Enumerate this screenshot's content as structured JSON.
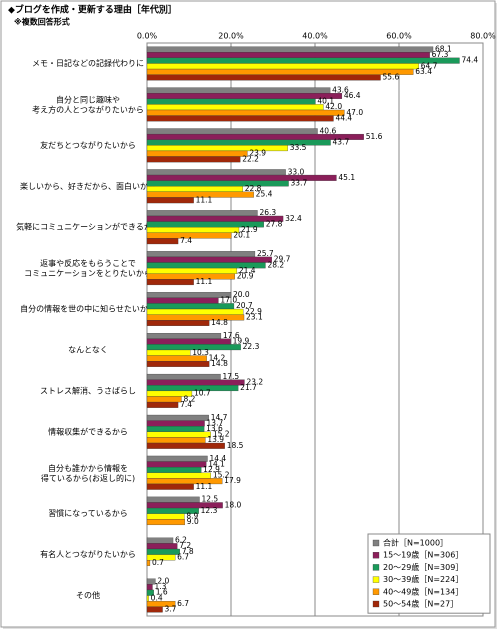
{
  "chart_data": {
    "type": "hbar",
    "title": "◆ブログを作成・更新する理由［年代別］",
    "subtitle": "※複数回答形式",
    "categories": [
      "メモ・日記などの記録代わりに",
      "自分と同じ趣味や\n考え方の人とつながりたいから",
      "友だちとつながりたいから",
      "楽しいから、好きだから、面白いから",
      "気軽にコミュニケーションができるから",
      "返事や反応をもらうことで\nコミュニケーションをとりたいから",
      "自分の情報を世の中に知らせたいから",
      "なんとなく",
      "ストレス解消、うさばらし",
      "情報収集ができるから",
      "自分も誰かから情報を\n得ているから(お返し的に)",
      "習慣になっているから",
      "有名人とつながりたいから",
      "その他"
    ],
    "series": [
      {
        "name": "合計［N=1000］",
        "color": "#808080",
        "values": [
          68.1,
          43.6,
          40.6,
          33.0,
          26.3,
          25.7,
          20.0,
          17.6,
          17.5,
          14.7,
          14.4,
          12.5,
          6.2,
          2.0
        ],
        "value_labels": [
          "68.1",
          "43.6",
          "40.6",
          "33.0",
          "26.3",
          "25.7",
          "20.0",
          "17.6",
          "17.5",
          "14.7",
          "14.4",
          "12.5",
          "6.2",
          "2.0"
        ]
      },
      {
        "name": "15～19歳［N=306］",
        "color": "#8b1f5a",
        "values": [
          67.3,
          46.4,
          51.6,
          45.1,
          32.4,
          29.7,
          17.0,
          19.9,
          23.2,
          13.7,
          14.1,
          18.0,
          7.2,
          1.3
        ],
        "value_labels": [
          "67.3",
          "46.4",
          "51.6",
          "45.1",
          "32.4",
          "29.7",
          "17.0",
          "19.9",
          "23.2",
          "13.7",
          "14.1",
          "18.0",
          "7.2",
          "1.3"
        ]
      },
      {
        "name": "20～29歳［N=309］",
        "color": "#1a9a5a",
        "values": [
          74.4,
          40.1,
          43.7,
          33.7,
          27.8,
          28.2,
          20.7,
          22.3,
          21.7,
          13.6,
          12.9,
          12.3,
          7.8,
          1.6
        ],
        "value_labels": [
          "74.4",
          "40.1",
          "43.7",
          "33.7",
          "27.8",
          "28.2",
          "20.7",
          "22.3",
          "21.7",
          "13.6",
          "12.9",
          "12.3",
          "7.8",
          "1.6"
        ]
      },
      {
        "name": "30～39歳［N=224］",
        "color": "#ffff00",
        "values": [
          64.7,
          42.0,
          33.5,
          22.8,
          21.9,
          21.4,
          22.9,
          10.3,
          10.7,
          15.2,
          15.2,
          8.9,
          6.7,
          0.4
        ],
        "value_labels": [
          "64.7",
          "42.0",
          "33.5",
          "22.8",
          "21.9",
          "21.4",
          "22.9",
          "10.3",
          "10.7",
          "15.2",
          "15.2",
          "8.9",
          "6.7",
          "0.4"
        ]
      },
      {
        "name": "40～49歳［N=134］",
        "color": "#ff9900",
        "values": [
          63.4,
          47.0,
          23.9,
          25.4,
          20.1,
          20.9,
          23.1,
          14.2,
          8.2,
          13.9,
          17.9,
          9.0,
          0.7,
          6.7
        ],
        "value_labels": [
          "63.4",
          "47.0",
          "23.9",
          "25.4",
          "20.1",
          "20.9",
          "23.1",
          "14.2",
          "8.2",
          "13.9",
          "17.9",
          "9.0",
          "0.7",
          "6.7"
        ]
      },
      {
        "name": "50～54歳［N=27］",
        "color": "#a0280a",
        "values": [
          55.6,
          44.4,
          22.2,
          11.1,
          7.4,
          11.1,
          14.8,
          14.8,
          7.4,
          18.5,
          11.1,
          null,
          null,
          3.7
        ],
        "value_labels": [
          "55.6",
          "44.4",
          "22.2",
          "11.1",
          "7.4",
          "11.1",
          "14.8",
          "14.8",
          "7.4",
          "18.5",
          "11.1",
          null,
          null,
          "3.7"
        ]
      }
    ],
    "xlim": [
      0,
      80
    ],
    "xticks": [
      {
        "value": 0,
        "label": "0.0%"
      },
      {
        "value": 20,
        "label": "20.0%"
      },
      {
        "value": 40,
        "label": "40.0%"
      },
      {
        "value": 60,
        "label": "60.0%"
      },
      {
        "value": 80,
        "label": "80.0%"
      }
    ],
    "grid": true
  }
}
